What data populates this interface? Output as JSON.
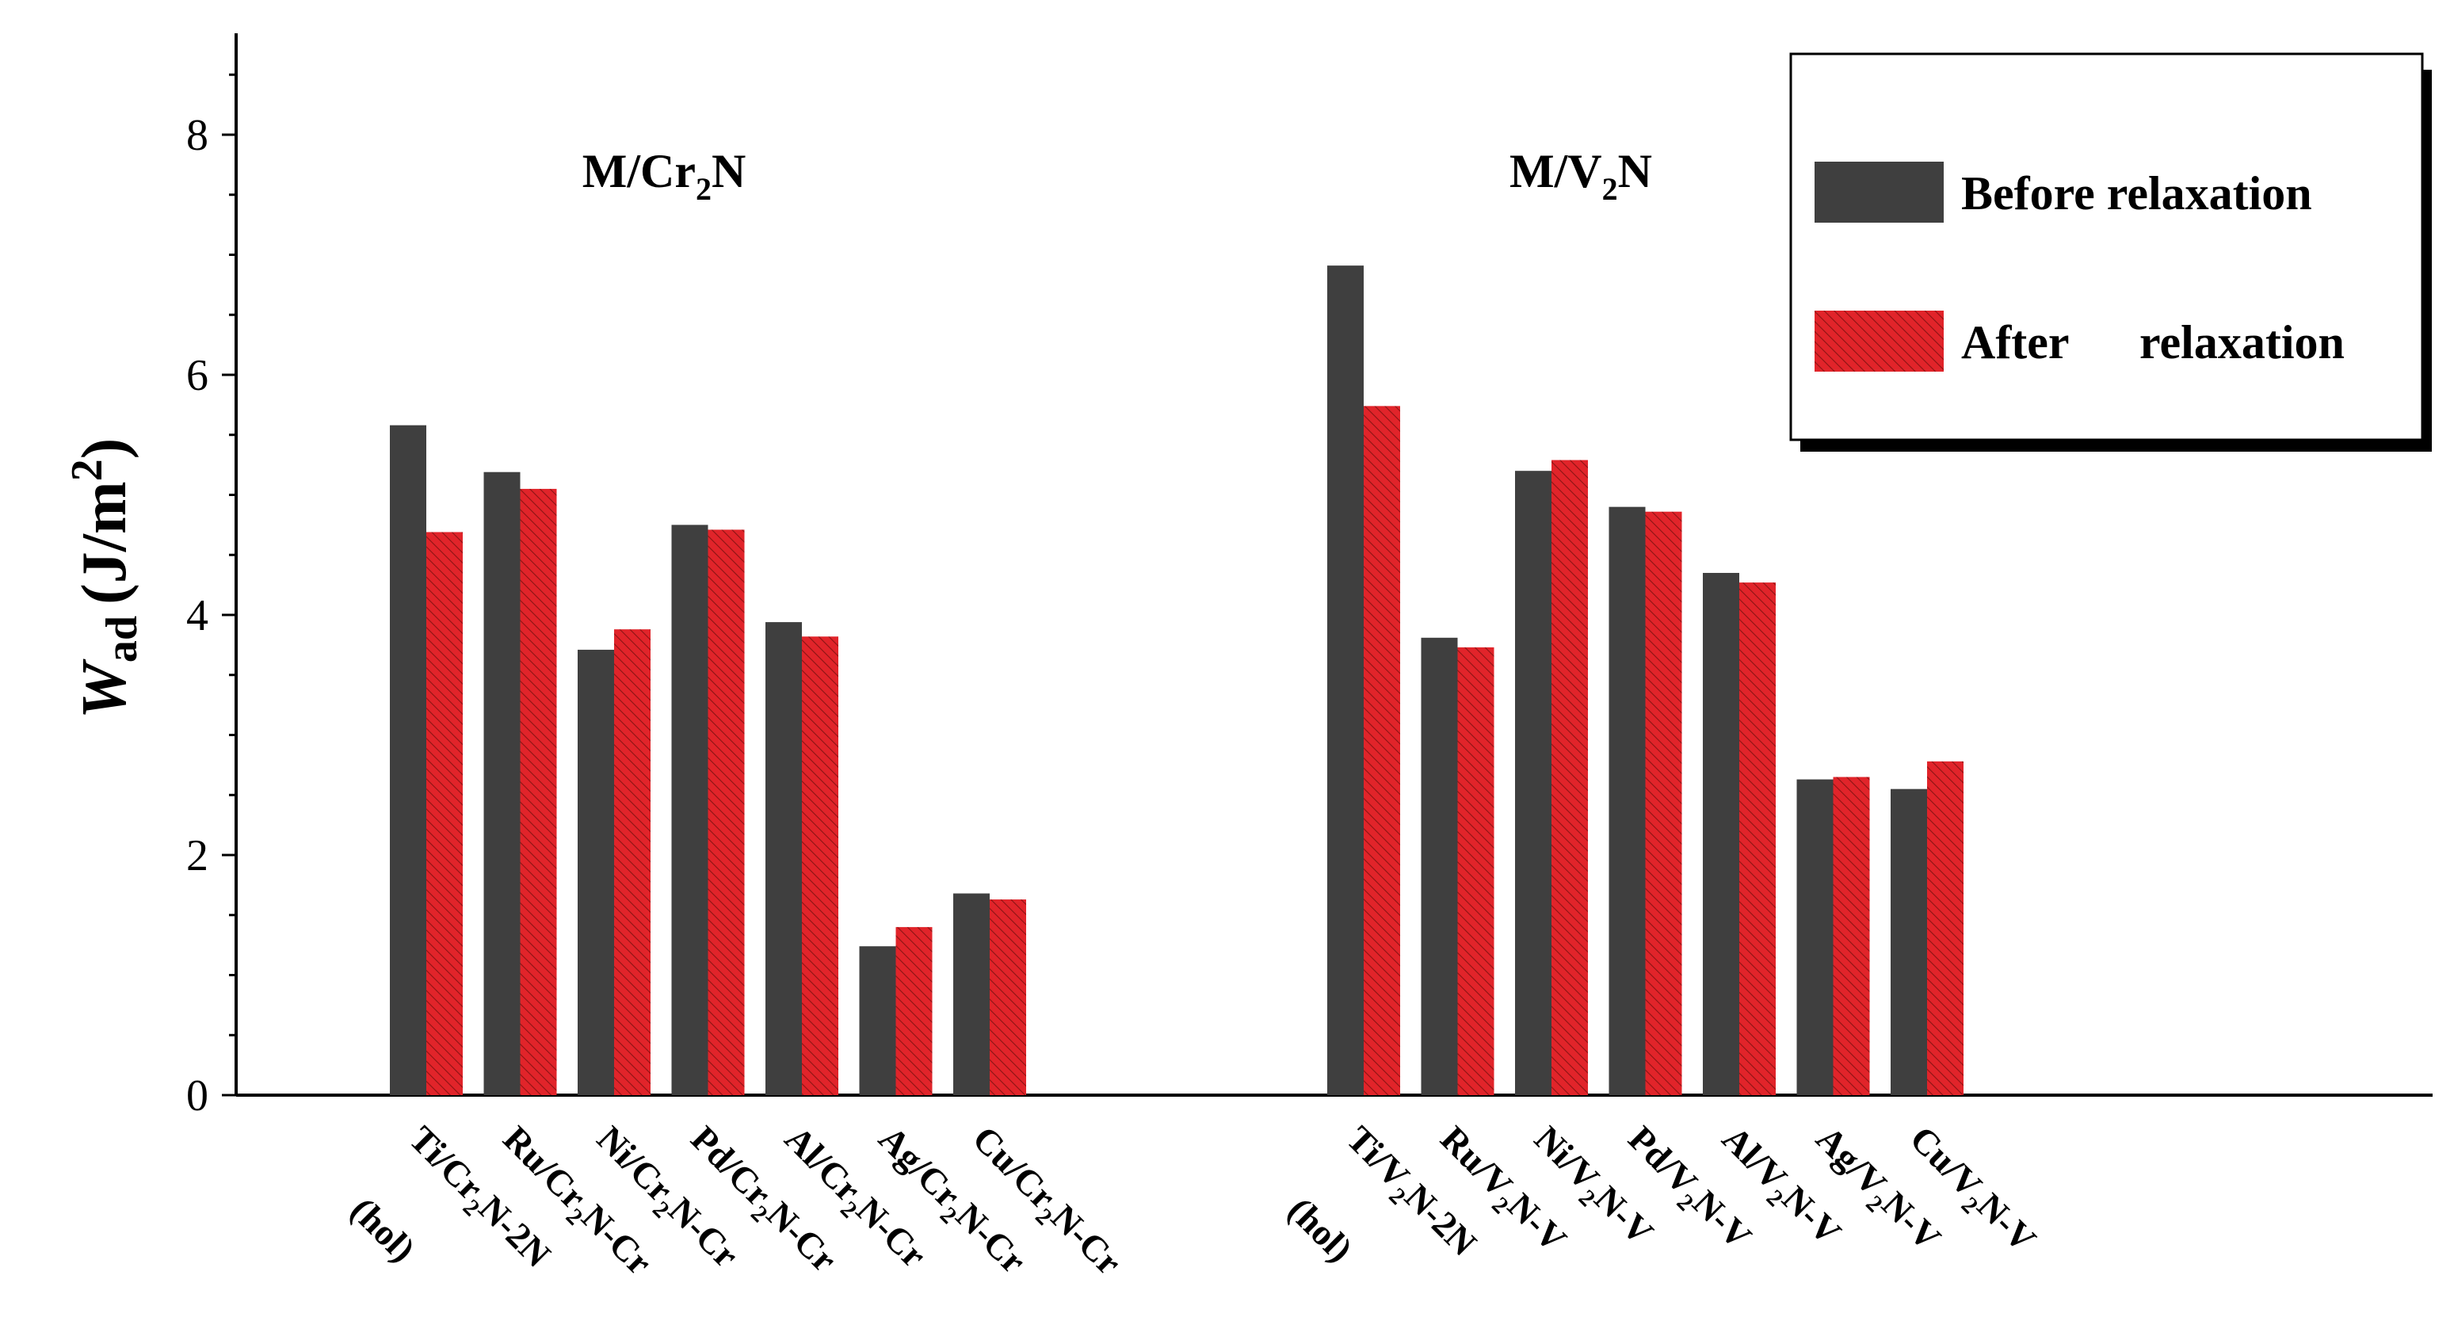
{
  "chart_data": {
    "type": "bar",
    "ylabel_symbol": "W",
    "ylabel_sub": "ad",
    "ylabel_unit_open": "(J/m",
    "ylabel_unit_sup": "2",
    "ylabel_unit_close": ")",
    "ylim": [
      0,
      8.9
    ],
    "yticks": [
      "0",
      "2",
      "4",
      "6",
      "8"
    ],
    "colors": {
      "before": "#3f3f3f",
      "after": "#e1242a",
      "hatch": "#8c1414"
    },
    "legend": {
      "before": "Before relaxation",
      "after_word1": "After",
      "after_word2": "relaxation",
      "placement": "top-right"
    },
    "series_names": [
      "Before relaxation",
      "After relaxation"
    ],
    "groups": [
      {
        "title_main": "M/Cr",
        "title_sub": "2",
        "title_end": "N",
        "bars": [
          {
            "before": 5.58,
            "after": 4.69,
            "label_parts": [
              [
                "Ti/Cr",
                false
              ],
              [
                "2",
                true
              ],
              [
                "N-2N",
                false
              ]
            ],
            "extra": "(hol)"
          },
          {
            "before": 5.19,
            "after": 5.05,
            "label_parts": [
              [
                "Ru/Cr",
                false
              ],
              [
                "2",
                true
              ],
              [
                "N-Cr",
                false
              ]
            ]
          },
          {
            "before": 3.71,
            "after": 3.88,
            "label_parts": [
              [
                "Ni/Cr",
                false
              ],
              [
                "2",
                true
              ],
              [
                "N-Cr",
                false
              ]
            ]
          },
          {
            "before": 4.75,
            "after": 4.71,
            "label_parts": [
              [
                "Pd/Cr",
                false
              ],
              [
                "2",
                true
              ],
              [
                "N-Cr",
                false
              ]
            ]
          },
          {
            "before": 3.94,
            "after": 3.82,
            "label_parts": [
              [
                "Al/Cr",
                false
              ],
              [
                "2",
                true
              ],
              [
                "N-Cr",
                false
              ]
            ]
          },
          {
            "before": 1.24,
            "after": 1.4,
            "label_parts": [
              [
                "Ag/Cr",
                false
              ],
              [
                "2",
                true
              ],
              [
                "N-Cr",
                false
              ]
            ]
          },
          {
            "before": 1.68,
            "after": 1.63,
            "label_parts": [
              [
                "Cu/Cr",
                false
              ],
              [
                "2",
                true
              ],
              [
                "N-Cr",
                false
              ]
            ]
          }
        ]
      },
      {
        "title_main": "M/V",
        "title_sub": "2",
        "title_end": "N",
        "bars": [
          {
            "before": 6.91,
            "after": 5.74,
            "label_parts": [
              [
                "Ti/V",
                false
              ],
              [
                "2",
                true
              ],
              [
                "N-2N",
                false
              ]
            ],
            "extra": "(hol)"
          },
          {
            "before": 3.81,
            "after": 3.73,
            "label_parts": [
              [
                "Ru/V",
                false
              ],
              [
                "2",
                true
              ],
              [
                "N-V",
                false
              ]
            ]
          },
          {
            "before": 5.2,
            "after": 5.29,
            "label_parts": [
              [
                "Ni/V",
                false
              ],
              [
                "2",
                true
              ],
              [
                "N-V",
                false
              ]
            ]
          },
          {
            "before": 4.9,
            "after": 4.86,
            "label_parts": [
              [
                "Pd/V",
                false
              ],
              [
                "2",
                true
              ],
              [
                "N-V",
                false
              ]
            ]
          },
          {
            "before": 4.35,
            "after": 4.27,
            "label_parts": [
              [
                "Al/V",
                false
              ],
              [
                "2",
                true
              ],
              [
                "N-V",
                false
              ]
            ]
          },
          {
            "before": 2.63,
            "after": 2.65,
            "label_parts": [
              [
                "Ag/V",
                false
              ],
              [
                "2",
                true
              ],
              [
                "N-V",
                false
              ]
            ]
          },
          {
            "before": 2.55,
            "after": 2.78,
            "label_parts": [
              [
                "Cu/V",
                false
              ],
              [
                "2",
                true
              ],
              [
                "N-V",
                false
              ]
            ]
          }
        ]
      }
    ]
  }
}
